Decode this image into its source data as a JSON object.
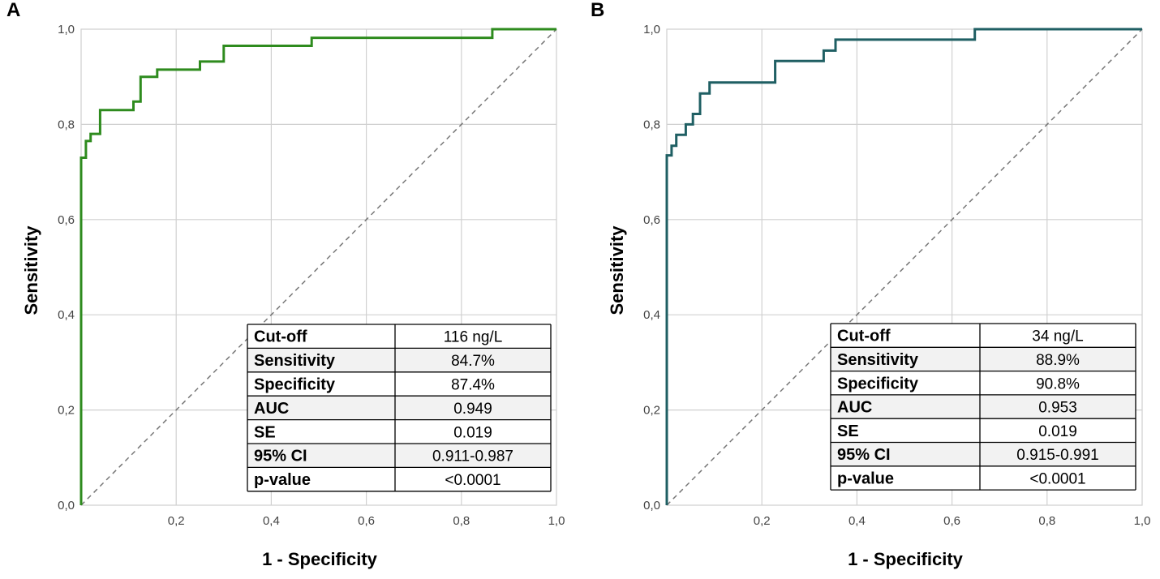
{
  "chart_data": [
    {
      "panel": "A",
      "type": "line",
      "xlabel": "1 - Specificity",
      "ylabel": "Sensitivity",
      "xlim": [
        0,
        1
      ],
      "ylim": [
        0,
        1
      ],
      "xticks": [
        "0,2",
        "0,4",
        "0,6",
        "0,8",
        "1,0"
      ],
      "yticks": [
        "0,0",
        "0,2",
        "0,4",
        "0,6",
        "0,8",
        "1,0"
      ],
      "line_color": "#2e8b1e",
      "diagonal": true,
      "roc": [
        [
          0,
          0
        ],
        [
          0,
          0.73
        ],
        [
          0.01,
          0.73
        ],
        [
          0.01,
          0.765
        ],
        [
          0.02,
          0.765
        ],
        [
          0.02,
          0.78
        ],
        [
          0.04,
          0.78
        ],
        [
          0.04,
          0.83
        ],
        [
          0.11,
          0.83
        ],
        [
          0.11,
          0.848
        ],
        [
          0.125,
          0.848
        ],
        [
          0.125,
          0.9
        ],
        [
          0.16,
          0.9
        ],
        [
          0.16,
          0.915
        ],
        [
          0.25,
          0.915
        ],
        [
          0.25,
          0.932
        ],
        [
          0.3,
          0.932
        ],
        [
          0.3,
          0.965
        ],
        [
          0.485,
          0.965
        ],
        [
          0.485,
          0.982
        ],
        [
          0.865,
          0.982
        ],
        [
          0.865,
          1
        ],
        [
          1,
          1
        ]
      ],
      "table": [
        {
          "label": "Cut-off",
          "value": "116 ng/L"
        },
        {
          "label": "Sensitivity",
          "value": "84.7%"
        },
        {
          "label": "Specificity",
          "value": "87.4%"
        },
        {
          "label": "AUC",
          "value": "0.949"
        },
        {
          "label": "SE",
          "value": "0.019"
        },
        {
          "label": "95% CI",
          "value": "0.911-0.987"
        },
        {
          "label": "p-value",
          "value": "<0.0001"
        }
      ]
    },
    {
      "panel": "B",
      "type": "line",
      "xlabel": "1 - Specificity",
      "ylabel": "Sensitivity",
      "xlim": [
        0,
        1
      ],
      "ylim": [
        0,
        1
      ],
      "xticks": [
        "0,2",
        "0,4",
        "0,6",
        "0,8",
        "1,0"
      ],
      "yticks": [
        "0,0",
        "0,2",
        "0,4",
        "0,6",
        "0,8",
        "1,0"
      ],
      "line_color": "#1f5f63",
      "diagonal": true,
      "roc": [
        [
          0,
          0
        ],
        [
          0,
          0.735
        ],
        [
          0.01,
          0.735
        ],
        [
          0.01,
          0.755
        ],
        [
          0.02,
          0.755
        ],
        [
          0.02,
          0.778
        ],
        [
          0.04,
          0.778
        ],
        [
          0.04,
          0.8
        ],
        [
          0.055,
          0.8
        ],
        [
          0.055,
          0.822
        ],
        [
          0.07,
          0.822
        ],
        [
          0.07,
          0.865
        ],
        [
          0.09,
          0.865
        ],
        [
          0.09,
          0.888
        ],
        [
          0.228,
          0.888
        ],
        [
          0.228,
          0.933
        ],
        [
          0.33,
          0.933
        ],
        [
          0.33,
          0.955
        ],
        [
          0.355,
          0.955
        ],
        [
          0.355,
          0.978
        ],
        [
          0.648,
          0.978
        ],
        [
          0.648,
          1
        ],
        [
          1,
          1
        ]
      ],
      "table": [
        {
          "label": "Cut-off",
          "value": "34 ng/L"
        },
        {
          "label": "Sensitivity",
          "value": "88.9%"
        },
        {
          "label": "Specificity",
          "value": "90.8%"
        },
        {
          "label": "AUC",
          "value": "0.953"
        },
        {
          "label": "SE",
          "value": "0.019"
        },
        {
          "label": "95% CI",
          "value": "0.915-0.991"
        },
        {
          "label": "p-value",
          "value": "<0.0001"
        }
      ]
    }
  ]
}
